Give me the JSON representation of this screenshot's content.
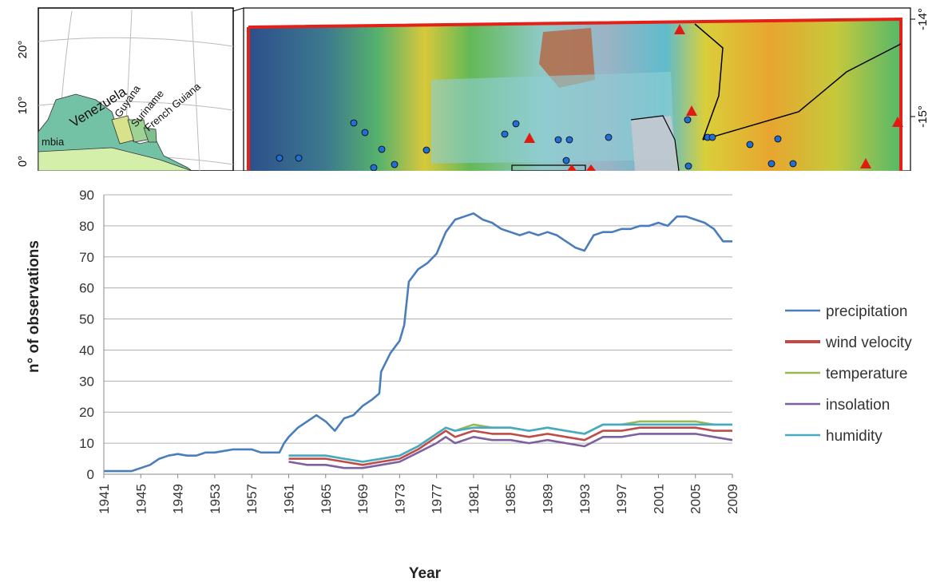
{
  "maps": {
    "left": {
      "countries": [
        "mbia",
        "Venezuela",
        "Guyana",
        "Suriname",
        "French Guiana"
      ],
      "lat_ticks": [
        "20°",
        "10°",
        "0°"
      ]
    },
    "right": {
      "lat_ticks": [
        "-14°",
        "-15°"
      ]
    },
    "colors": {
      "frame": "#e32119",
      "stations": "#1f6fd6",
      "triangles": "#e01a12"
    }
  },
  "chart_data": {
    "type": "line",
    "title": "",
    "xlabel": "Year",
    "ylabel": "n° of observations",
    "xlim": [
      1941,
      2009
    ],
    "ylim": [
      0,
      90
    ],
    "y_ticks": [
      0,
      10,
      20,
      30,
      40,
      50,
      60,
      70,
      80,
      90
    ],
    "x_ticks": [
      "1941",
      "1945",
      "1949",
      "1953",
      "1957",
      "1961",
      "1965",
      "1969",
      "1973",
      "1977",
      "1981",
      "1985",
      "1989",
      "1993",
      "1997",
      "2001",
      "2005",
      "2009"
    ],
    "grid": "horizontal",
    "legend_position": "right",
    "series": [
      {
        "name": "precipitation",
        "color": "#4a7ebb",
        "points": [
          [
            1941,
            1
          ],
          [
            1944,
            1
          ],
          [
            1945,
            2
          ],
          [
            1946,
            3
          ],
          [
            1947,
            5
          ],
          [
            1948,
            6
          ],
          [
            1949,
            6.5
          ],
          [
            1950,
            6
          ],
          [
            1951,
            6
          ],
          [
            1952,
            7
          ],
          [
            1953,
            7
          ],
          [
            1954,
            7.5
          ],
          [
            1955,
            8
          ],
          [
            1956,
            8
          ],
          [
            1957,
            8
          ],
          [
            1958,
            7
          ],
          [
            1959,
            7
          ],
          [
            1960,
            7
          ],
          [
            1960.5,
            10
          ],
          [
            1961,
            12
          ],
          [
            1962,
            15
          ],
          [
            1963,
            17
          ],
          [
            1964,
            19
          ],
          [
            1965,
            17
          ],
          [
            1966,
            14
          ],
          [
            1967,
            18
          ],
          [
            1968,
            19
          ],
          [
            1969,
            22
          ],
          [
            1970,
            24
          ],
          [
            1970.8,
            26
          ],
          [
            1971,
            33
          ],
          [
            1972,
            39
          ],
          [
            1973,
            43
          ],
          [
            1973.5,
            48
          ],
          [
            1974,
            62
          ],
          [
            1975,
            66
          ],
          [
            1976,
            68
          ],
          [
            1977,
            71
          ],
          [
            1978,
            78
          ],
          [
            1979,
            82
          ],
          [
            1980,
            83
          ],
          [
            1981,
            84
          ],
          [
            1982,
            82
          ],
          [
            1983,
            81
          ],
          [
            1984,
            79
          ],
          [
            1985,
            78
          ],
          [
            1986,
            77
          ],
          [
            1987,
            78
          ],
          [
            1988,
            77
          ],
          [
            1989,
            78
          ],
          [
            1990,
            77
          ],
          [
            1991,
            75
          ],
          [
            1992,
            73
          ],
          [
            1993,
            72
          ],
          [
            1994,
            77
          ],
          [
            1995,
            78
          ],
          [
            1996,
            78
          ],
          [
            1997,
            79
          ],
          [
            1998,
            79
          ],
          [
            1999,
            80
          ],
          [
            2000,
            80
          ],
          [
            2001,
            81
          ],
          [
            2002,
            80
          ],
          [
            2003,
            83
          ],
          [
            2004,
            83
          ],
          [
            2005,
            82
          ],
          [
            2006,
            81
          ],
          [
            2007,
            79
          ],
          [
            2008,
            75
          ],
          [
            2009,
            75
          ]
        ]
      },
      {
        "name": "wind velocity",
        "color": "#be4b48",
        "points": [
          [
            1961,
            5
          ],
          [
            1963,
            5
          ],
          [
            1965,
            5
          ],
          [
            1967,
            4
          ],
          [
            1969,
            3
          ],
          [
            1971,
            4
          ],
          [
            1973,
            5
          ],
          [
            1975,
            8
          ],
          [
            1977,
            12
          ],
          [
            1978,
            14
          ],
          [
            1979,
            12
          ],
          [
            1981,
            14
          ],
          [
            1983,
            13
          ],
          [
            1985,
            13
          ],
          [
            1987,
            12
          ],
          [
            1989,
            13
          ],
          [
            1991,
            12
          ],
          [
            1993,
            11
          ],
          [
            1995,
            14
          ],
          [
            1997,
            14
          ],
          [
            1999,
            15
          ],
          [
            2001,
            15
          ],
          [
            2003,
            15
          ],
          [
            2005,
            15
          ],
          [
            2007,
            14
          ],
          [
            2009,
            14
          ]
        ]
      },
      {
        "name": "temperature",
        "color": "#98b954",
        "points": [
          [
            1961,
            6
          ],
          [
            1963,
            6
          ],
          [
            1965,
            6
          ],
          [
            1967,
            5
          ],
          [
            1969,
            4
          ],
          [
            1971,
            5
          ],
          [
            1973,
            6
          ],
          [
            1975,
            9
          ],
          [
            1977,
            13
          ],
          [
            1978,
            15
          ],
          [
            1979,
            14
          ],
          [
            1981,
            16
          ],
          [
            1983,
            15
          ],
          [
            1985,
            15
          ],
          [
            1987,
            14
          ],
          [
            1989,
            15
          ],
          [
            1991,
            14
          ],
          [
            1993,
            13
          ],
          [
            1995,
            16
          ],
          [
            1997,
            16
          ],
          [
            1999,
            17
          ],
          [
            2001,
            17
          ],
          [
            2003,
            17
          ],
          [
            2005,
            17
          ],
          [
            2007,
            16
          ],
          [
            2009,
            16
          ]
        ]
      },
      {
        "name": "insolation",
        "color": "#7d60a0",
        "points": [
          [
            1961,
            4
          ],
          [
            1963,
            3
          ],
          [
            1965,
            3
          ],
          [
            1967,
            2
          ],
          [
            1969,
            2
          ],
          [
            1971,
            3
          ],
          [
            1973,
            4
          ],
          [
            1975,
            7
          ],
          [
            1977,
            10
          ],
          [
            1978,
            12
          ],
          [
            1979,
            10
          ],
          [
            1981,
            12
          ],
          [
            1983,
            11
          ],
          [
            1985,
            11
          ],
          [
            1987,
            10
          ],
          [
            1989,
            11
          ],
          [
            1991,
            10
          ],
          [
            1993,
            9
          ],
          [
            1995,
            12
          ],
          [
            1997,
            12
          ],
          [
            1999,
            13
          ],
          [
            2001,
            13
          ],
          [
            2003,
            13
          ],
          [
            2005,
            13
          ],
          [
            2007,
            12
          ],
          [
            2009,
            11
          ]
        ]
      },
      {
        "name": "humidity",
        "color": "#46aac5",
        "points": [
          [
            1961,
            6
          ],
          [
            1963,
            6
          ],
          [
            1965,
            6
          ],
          [
            1967,
            5
          ],
          [
            1969,
            4
          ],
          [
            1971,
            5
          ],
          [
            1973,
            6
          ],
          [
            1975,
            9
          ],
          [
            1977,
            13
          ],
          [
            1978,
            15
          ],
          [
            1979,
            14
          ],
          [
            1981,
            15
          ],
          [
            1983,
            15
          ],
          [
            1985,
            15
          ],
          [
            1987,
            14
          ],
          [
            1989,
            15
          ],
          [
            1991,
            14
          ],
          [
            1993,
            13
          ],
          [
            1995,
            16
          ],
          [
            1997,
            16
          ],
          [
            1999,
            16
          ],
          [
            2001,
            16
          ],
          [
            2003,
            16
          ],
          [
            2005,
            16
          ],
          [
            2007,
            16
          ],
          [
            2009,
            16
          ]
        ]
      }
    ]
  }
}
